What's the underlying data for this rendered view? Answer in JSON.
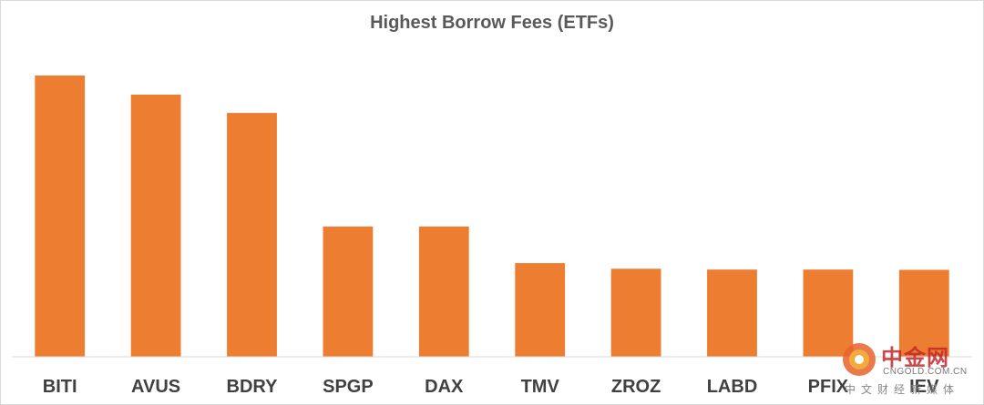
{
  "chart_data": {
    "type": "bar",
    "title": "Highest Borrow Fees (ETFs)",
    "xlabel": "",
    "ylabel": "",
    "categories": [
      "BITI",
      "AVUS",
      "BDRY",
      "SPGP",
      "DAX",
      "TMV",
      "ZROZ",
      "LABD",
      "PFIX",
      "IEV"
    ],
    "values": [
      100,
      93.2,
      86.7,
      46.3,
      46.3,
      33.3,
      31.3,
      31.0,
      31.0,
      30.9
    ],
    "ylim": [
      0,
      100
    ],
    "bar_color": "#ed7d31",
    "grid": false,
    "legend": "none"
  },
  "watermark": {
    "name": "中金网",
    "url": "CNGOLD.COM.CN",
    "tagline": "中文财经新媒体"
  }
}
